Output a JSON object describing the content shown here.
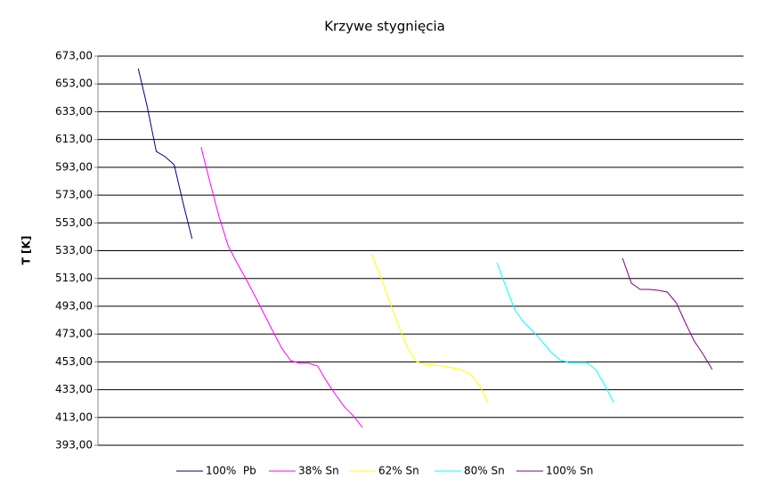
{
  "chart_data": {
    "type": "line",
    "title": "Krzywe stygnięcia",
    "y_label": "T [K]",
    "categories": [
      null,
      null,
      null,
      null,
      null,
      null,
      null,
      null,
      null,
      null,
      null,
      null,
      null,
      null,
      null,
      null,
      null,
      null,
      null,
      null,
      null,
      null,
      null,
      null,
      null,
      null,
      null,
      null,
      null,
      null,
      null,
      null,
      null,
      null,
      null,
      null,
      null,
      null,
      null,
      null,
      null,
      null,
      null,
      null,
      null,
      null,
      null,
      null,
      null,
      null,
      null,
      null,
      null,
      null,
      null,
      null,
      null,
      null,
      null,
      null,
      null,
      null,
      null,
      null,
      null,
      null,
      null,
      null,
      null,
      null,
      null,
      null
    ],
    "series": [
      {
        "name": "100%  Pb",
        "color": "#000080",
        "values": [
          null,
          null,
          null,
          null,
          664,
          636.5,
          604.4,
          600.6,
          594.8,
          567,
          541.6,
          null,
          null,
          null,
          null,
          null,
          null,
          null,
          null,
          null,
          null,
          null,
          null,
          null,
          null,
          null,
          null,
          null,
          null,
          null,
          null,
          null,
          null,
          null,
          null,
          null,
          null,
          null,
          null,
          null,
          null,
          null,
          null,
          null,
          null,
          null,
          null,
          null,
          null,
          null,
          null,
          null,
          null,
          null,
          null,
          null,
          null,
          null,
          null,
          null,
          null,
          null,
          null,
          null,
          null,
          null,
          null,
          null,
          null,
          null,
          null,
          null
        ]
      },
      {
        "name": "38% Sn",
        "color": "#ff00ff",
        "values": [
          null,
          null,
          null,
          null,
          null,
          null,
          null,
          null,
          null,
          null,
          null,
          607.6,
          582,
          557.7,
          537,
          524.3,
          512.8,
          500.6,
          487.8,
          475,
          463,
          453.9,
          452,
          452,
          450,
          439,
          429.5,
          420.5,
          414,
          405.8,
          null,
          null,
          null,
          null,
          null,
          null,
          null,
          null,
          null,
          null,
          null,
          null,
          null,
          null,
          null,
          null,
          null,
          null,
          null,
          null,
          null,
          null,
          null,
          null,
          null,
          null,
          null,
          null,
          null,
          null,
          null,
          null,
          null,
          null,
          null,
          null,
          null,
          null,
          null,
          null,
          null,
          null
        ]
      },
      {
        "name": "62% Sn",
        "color": "#ffff00",
        "values": [
          null,
          null,
          null,
          null,
          null,
          null,
          null,
          null,
          null,
          null,
          null,
          null,
          null,
          null,
          null,
          null,
          null,
          null,
          null,
          null,
          null,
          null,
          null,
          null,
          null,
          null,
          null,
          null,
          null,
          null,
          530.8,
          514.7,
          496.8,
          479.5,
          463.5,
          453.2,
          451.3,
          450.7,
          450,
          448.7,
          447.5,
          444.3,
          436.6,
          423.8,
          null,
          null,
          null,
          null,
          null,
          null,
          null,
          null,
          null,
          null,
          null,
          null,
          null,
          null,
          null,
          null,
          null,
          null,
          null,
          null,
          null,
          null,
          null,
          null,
          null,
          null,
          null,
          null
        ]
      },
      {
        "name": "80% Sn",
        "color": "#00ffff",
        "values": [
          null,
          null,
          null,
          null,
          null,
          null,
          null,
          null,
          null,
          null,
          null,
          null,
          null,
          null,
          null,
          null,
          null,
          null,
          null,
          null,
          null,
          null,
          null,
          null,
          null,
          null,
          null,
          null,
          null,
          null,
          null,
          null,
          null,
          null,
          null,
          null,
          null,
          null,
          null,
          null,
          null,
          null,
          null,
          null,
          524.3,
          507,
          490.4,
          481.4,
          475,
          468,
          460.3,
          454.5,
          452.6,
          452.6,
          452.6,
          447.5,
          436.6,
          423.8,
          null,
          null,
          null,
          null,
          null,
          null,
          null,
          null,
          null,
          null,
          null,
          null,
          null,
          null
        ]
      },
      {
        "name": "100% Sn",
        "color": "#800080",
        "values": [
          null,
          null,
          null,
          null,
          null,
          null,
          null,
          null,
          null,
          null,
          null,
          null,
          null,
          null,
          null,
          null,
          null,
          null,
          null,
          null,
          null,
          null,
          null,
          null,
          null,
          null,
          null,
          null,
          null,
          null,
          null,
          null,
          null,
          null,
          null,
          null,
          null,
          null,
          null,
          null,
          null,
          null,
          null,
          null,
          null,
          null,
          null,
          null,
          null,
          null,
          null,
          null,
          null,
          null,
          null,
          null,
          null,
          null,
          527.6,
          509.6,
          505.1,
          505.1,
          504.5,
          503.2,
          495.5,
          481.4,
          468,
          458.4,
          447.5,
          null,
          null,
          null
        ]
      }
    ],
    "ylim": [
      393,
      673
    ],
    "yticks": [
      {
        "value": 393,
        "label": "393,00"
      },
      {
        "value": 413,
        "label": "413,00"
      },
      {
        "value": 433,
        "label": "433,00"
      },
      {
        "value": 453,
        "label": "453,00"
      },
      {
        "value": 473,
        "label": "473,00"
      },
      {
        "value": 493,
        "label": "493,00"
      },
      {
        "value": 513,
        "label": "513,00"
      },
      {
        "value": 533,
        "label": "533,00"
      },
      {
        "value": 553,
        "label": "553,00"
      },
      {
        "value": 573,
        "label": "573,00"
      },
      {
        "value": 593,
        "label": "593,00"
      },
      {
        "value": 613,
        "label": "613,00"
      },
      {
        "value": 633,
        "label": "633,00"
      },
      {
        "value": 653,
        "label": "653,00"
      },
      {
        "value": 673,
        "label": "673,00"
      }
    ],
    "grid": true,
    "legend": "bottom"
  }
}
